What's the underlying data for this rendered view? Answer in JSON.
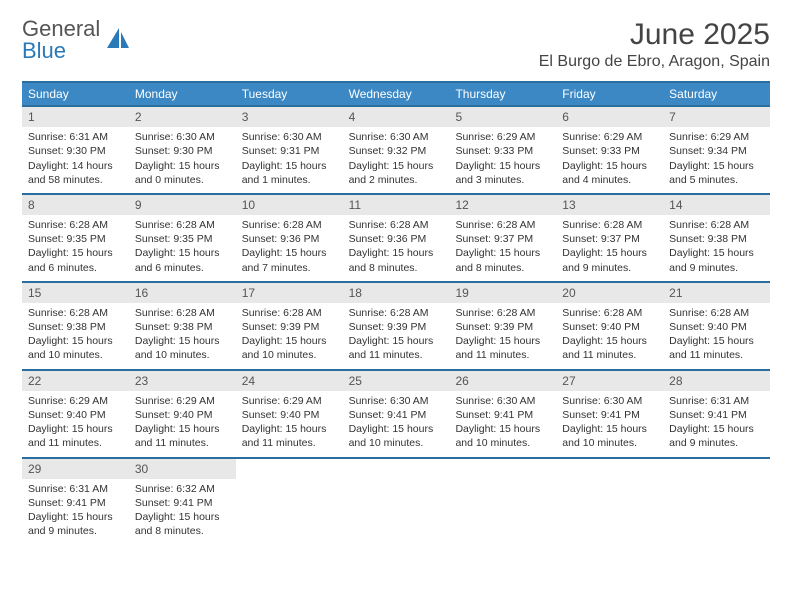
{
  "logo": {
    "text1": "General",
    "text2": "Blue"
  },
  "title": "June 2025",
  "location": "El Burgo de Ebro, Aragon, Spain",
  "colors": {
    "header_bg": "#3b88c4",
    "border": "#2a6ea0",
    "daynum_bg": "#e8e8e8",
    "text": "#333333",
    "logo_gray": "#555555",
    "logo_blue": "#2a79b8"
  },
  "day_names": [
    "Sunday",
    "Monday",
    "Tuesday",
    "Wednesday",
    "Thursday",
    "Friday",
    "Saturday"
  ],
  "weeks": [
    [
      {
        "n": "1",
        "sr": "6:31 AM",
        "ss": "9:30 PM",
        "dl": "14 hours and 58 minutes."
      },
      {
        "n": "2",
        "sr": "6:30 AM",
        "ss": "9:30 PM",
        "dl": "15 hours and 0 minutes."
      },
      {
        "n": "3",
        "sr": "6:30 AM",
        "ss": "9:31 PM",
        "dl": "15 hours and 1 minutes."
      },
      {
        "n": "4",
        "sr": "6:30 AM",
        "ss": "9:32 PM",
        "dl": "15 hours and 2 minutes."
      },
      {
        "n": "5",
        "sr": "6:29 AM",
        "ss": "9:33 PM",
        "dl": "15 hours and 3 minutes."
      },
      {
        "n": "6",
        "sr": "6:29 AM",
        "ss": "9:33 PM",
        "dl": "15 hours and 4 minutes."
      },
      {
        "n": "7",
        "sr": "6:29 AM",
        "ss": "9:34 PM",
        "dl": "15 hours and 5 minutes."
      }
    ],
    [
      {
        "n": "8",
        "sr": "6:28 AM",
        "ss": "9:35 PM",
        "dl": "15 hours and 6 minutes."
      },
      {
        "n": "9",
        "sr": "6:28 AM",
        "ss": "9:35 PM",
        "dl": "15 hours and 6 minutes."
      },
      {
        "n": "10",
        "sr": "6:28 AM",
        "ss": "9:36 PM",
        "dl": "15 hours and 7 minutes."
      },
      {
        "n": "11",
        "sr": "6:28 AM",
        "ss": "9:36 PM",
        "dl": "15 hours and 8 minutes."
      },
      {
        "n": "12",
        "sr": "6:28 AM",
        "ss": "9:37 PM",
        "dl": "15 hours and 8 minutes."
      },
      {
        "n": "13",
        "sr": "6:28 AM",
        "ss": "9:37 PM",
        "dl": "15 hours and 9 minutes."
      },
      {
        "n": "14",
        "sr": "6:28 AM",
        "ss": "9:38 PM",
        "dl": "15 hours and 9 minutes."
      }
    ],
    [
      {
        "n": "15",
        "sr": "6:28 AM",
        "ss": "9:38 PM",
        "dl": "15 hours and 10 minutes."
      },
      {
        "n": "16",
        "sr": "6:28 AM",
        "ss": "9:38 PM",
        "dl": "15 hours and 10 minutes."
      },
      {
        "n": "17",
        "sr": "6:28 AM",
        "ss": "9:39 PM",
        "dl": "15 hours and 10 minutes."
      },
      {
        "n": "18",
        "sr": "6:28 AM",
        "ss": "9:39 PM",
        "dl": "15 hours and 11 minutes."
      },
      {
        "n": "19",
        "sr": "6:28 AM",
        "ss": "9:39 PM",
        "dl": "15 hours and 11 minutes."
      },
      {
        "n": "20",
        "sr": "6:28 AM",
        "ss": "9:40 PM",
        "dl": "15 hours and 11 minutes."
      },
      {
        "n": "21",
        "sr": "6:28 AM",
        "ss": "9:40 PM",
        "dl": "15 hours and 11 minutes."
      }
    ],
    [
      {
        "n": "22",
        "sr": "6:29 AM",
        "ss": "9:40 PM",
        "dl": "15 hours and 11 minutes."
      },
      {
        "n": "23",
        "sr": "6:29 AM",
        "ss": "9:40 PM",
        "dl": "15 hours and 11 minutes."
      },
      {
        "n": "24",
        "sr": "6:29 AM",
        "ss": "9:40 PM",
        "dl": "15 hours and 11 minutes."
      },
      {
        "n": "25",
        "sr": "6:30 AM",
        "ss": "9:41 PM",
        "dl": "15 hours and 10 minutes."
      },
      {
        "n": "26",
        "sr": "6:30 AM",
        "ss": "9:41 PM",
        "dl": "15 hours and 10 minutes."
      },
      {
        "n": "27",
        "sr": "6:30 AM",
        "ss": "9:41 PM",
        "dl": "15 hours and 10 minutes."
      },
      {
        "n": "28",
        "sr": "6:31 AM",
        "ss": "9:41 PM",
        "dl": "15 hours and 9 minutes."
      }
    ],
    [
      {
        "n": "29",
        "sr": "6:31 AM",
        "ss": "9:41 PM",
        "dl": "15 hours and 9 minutes."
      },
      {
        "n": "30",
        "sr": "6:32 AM",
        "ss": "9:41 PM",
        "dl": "15 hours and 8 minutes."
      },
      null,
      null,
      null,
      null,
      null
    ]
  ],
  "labels": {
    "sunrise": "Sunrise:",
    "sunset": "Sunset:",
    "daylight": "Daylight:"
  }
}
